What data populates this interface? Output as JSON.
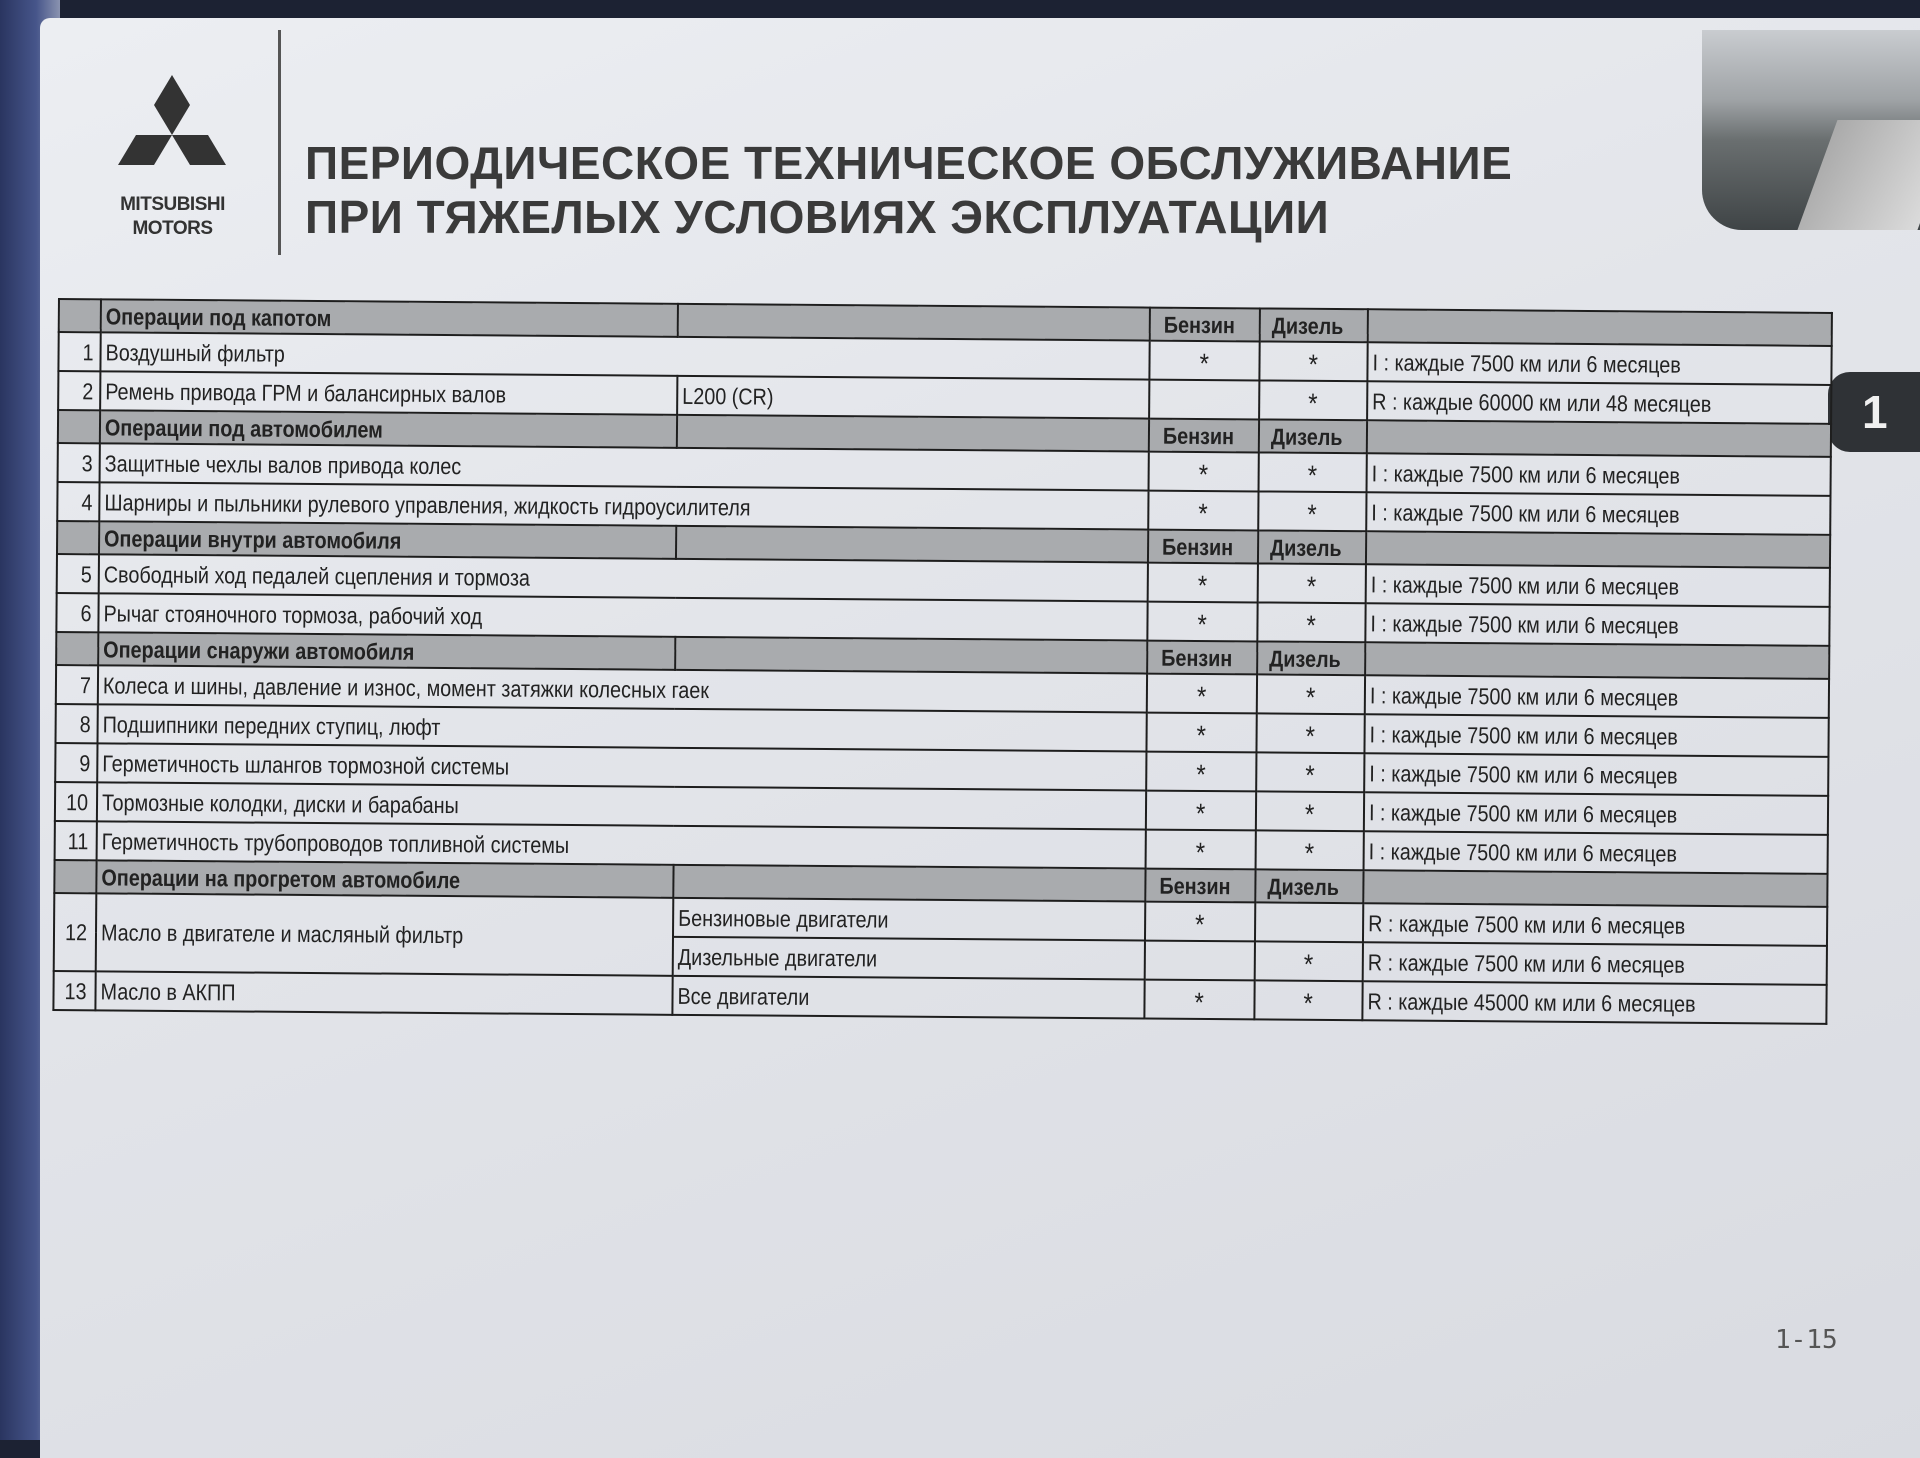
{
  "logo": {
    "brand": "MITSUBISHI MOTORS",
    "line1": "MITSUBISHI",
    "line2": "MOTORS"
  },
  "title": {
    "line1": "ПЕРИОДИЧЕСКОЕ ТЕХНИЧЕСКОЕ ОБСЛУЖИВАНИЕ",
    "line2": "ПРИ ТЯЖЕЛЫХ УСЛОВИЯХ ЭКСПЛУАТАЦИИ"
  },
  "chapter_tab": "1",
  "page_number": "1-15",
  "sections": [
    {
      "title": "Операции под капотом",
      "petrol": "Бензин",
      "diesel": "Дизель",
      "rows": [
        {
          "num": "1",
          "name": "Воздушный фильтр",
          "variants": [
            {
              "sub": "",
              "petrol": "*",
              "diesel": "*",
              "interval": "I : каждые 7500 км или 6 месяцев"
            }
          ]
        },
        {
          "num": "2",
          "name": "Ремень привода ГРМ и балансирных валов",
          "variants": [
            {
              "sub": "L200 (CR)",
              "petrol": "",
              "diesel": "*",
              "interval": "R : каждые 60000 км или 48 месяцев"
            }
          ]
        }
      ]
    },
    {
      "title": "Операции под автомобилем",
      "petrol": "Бензин",
      "diesel": "Дизель",
      "rows": [
        {
          "num": "3",
          "name": "Защитные чехлы валов привода колес",
          "variants": [
            {
              "sub": "",
              "petrol": "*",
              "diesel": "*",
              "interval": "I : каждые 7500 км или 6 месяцев"
            }
          ]
        },
        {
          "num": "4",
          "name": "Шарниры и пыльники рулевого управления, жидкость гидроусилителя",
          "variants": [
            {
              "sub": "",
              "petrol": "*",
              "diesel": "*",
              "interval": "I : каждые 7500 км или 6 месяцев"
            }
          ]
        }
      ]
    },
    {
      "title": "Операции внутри автомобиля",
      "petrol": "Бензин",
      "diesel": "Дизель",
      "rows": [
        {
          "num": "5",
          "name": "Свободный ход педалей сцепления и тормоза",
          "variants": [
            {
              "sub": "",
              "petrol": "*",
              "diesel": "*",
              "interval": "I : каждые 7500 км или 6 месяцев"
            }
          ]
        },
        {
          "num": "6",
          "name": "Рычаг стояночного тормоза, рабочий ход",
          "variants": [
            {
              "sub": "",
              "petrol": "*",
              "diesel": "*",
              "interval": "I : каждые 7500 км или 6 месяцев"
            }
          ]
        }
      ]
    },
    {
      "title": "Операции снаружи автомобиля",
      "petrol": "Бензин",
      "diesel": "Дизель",
      "rows": [
        {
          "num": "7",
          "name": "Колеса и шины, давление и износ, момент затяжки колесных гаек",
          "variants": [
            {
              "sub": "",
              "petrol": "*",
              "diesel": "*",
              "interval": "I : каждые 7500 км или 6 месяцев"
            }
          ]
        },
        {
          "num": "8",
          "name": "Подшипники передних ступиц, люфт",
          "variants": [
            {
              "sub": "",
              "petrol": "*",
              "diesel": "*",
              "interval": "I : каждые 7500 км или 6 месяцев"
            }
          ]
        },
        {
          "num": "9",
          "name": "Герметичность шлангов тормозной системы",
          "variants": [
            {
              "sub": "",
              "petrol": "*",
              "diesel": "*",
              "interval": "I : каждые 7500 км или 6 месяцев"
            }
          ]
        },
        {
          "num": "10",
          "name": "Тормозные колодки, диски и барабаны",
          "variants": [
            {
              "sub": "",
              "petrol": "*",
              "diesel": "*",
              "interval": "I : каждые 7500 км или 6 месяцев"
            }
          ]
        },
        {
          "num": "11",
          "name": "Герметичность трубопроводов топливной системы",
          "variants": [
            {
              "sub": "",
              "petrol": "*",
              "diesel": "*",
              "interval": "I : каждые 7500 км или 6 месяцев"
            }
          ]
        }
      ]
    },
    {
      "title": "Операции на прогретом автомобиле",
      "petrol": "Бензин",
      "diesel": "Дизель",
      "rows": [
        {
          "num": "12",
          "name": "Масло в двигателе и масляный фильтр",
          "variants": [
            {
              "sub": "Бензиновые двигатели",
              "petrol": "*",
              "diesel": "",
              "interval": "R : каждые 7500 км или 6 месяцев"
            },
            {
              "sub": "Дизельные двигатели",
              "petrol": "",
              "diesel": "*",
              "interval": "R : каждые 7500 км или 6 месяцев"
            }
          ]
        },
        {
          "num": "13",
          "name": "Масло в АКПП",
          "variants": [
            {
              "sub": "Все двигатели",
              "petrol": "*",
              "diesel": "*",
              "interval": "R : каждые 45000 км или 6 месяцев"
            }
          ]
        }
      ]
    }
  ]
}
